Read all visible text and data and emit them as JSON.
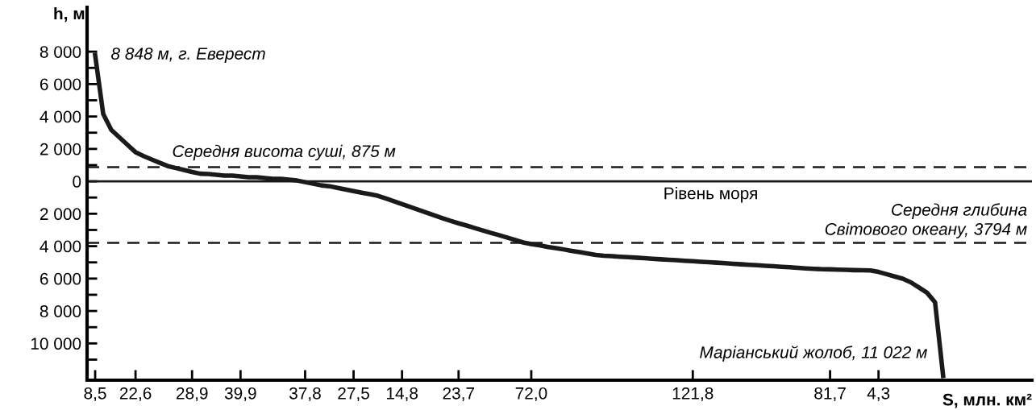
{
  "chart_data": {
    "type": "line",
    "xlabel": "S, млн. км²",
    "ylabel": "h, м",
    "categories": [
      null,
      "8,5",
      null,
      null,
      null,
      null,
      "22,6",
      null,
      null,
      null,
      null,
      null,
      null,
      "28,9",
      null,
      null,
      null,
      null,
      null,
      "39,9",
      null,
      null,
      null,
      null,
      null,
      null,
      null,
      "37,8",
      null,
      null,
      null,
      null,
      null,
      "27,5",
      null,
      null,
      null,
      null,
      null,
      "14,8",
      null,
      null,
      null,
      null,
      null,
      null,
      "23,7",
      null,
      null,
      null,
      null,
      null,
      null,
      null,
      null,
      "72,0",
      null,
      null,
      null,
      null,
      null,
      null,
      null,
      null,
      null,
      null,
      null,
      null,
      null,
      null,
      null,
      null,
      null,
      null,
      null,
      "121,8",
      null,
      null,
      null,
      null,
      null,
      null,
      null,
      null,
      null,
      null,
      null,
      null,
      null,
      null,
      null,
      null,
      "81,7",
      null,
      null,
      null,
      null,
      null,
      "4,3",
      null,
      null,
      null,
      null,
      null,
      null,
      null,
      null,
      null,
      null,
      null,
      null,
      null,
      null,
      null,
      null,
      null,
      null
    ],
    "series": [
      {
        "color": "#1a1a1a",
        "values": [
          null,
          7790,
          4150,
          3170,
          2710,
          2250,
          1800,
          1560,
          1350,
          1140,
          940,
          820,
          700,
          580,
          470,
          450,
          400,
          350,
          350,
          300,
          250,
          250,
          200,
          150,
          150,
          100,
          50,
          -50,
          -150,
          -250,
          -300,
          -400,
          -500,
          -600,
          -700,
          -790,
          -890,
          -1060,
          -1230,
          -1410,
          -1580,
          -1750,
          -1930,
          -2100,
          -2270,
          -2440,
          -2590,
          -2730,
          -2880,
          -3030,
          -3180,
          -3320,
          -3470,
          -3620,
          -3770,
          -3870,
          -3950,
          -4040,
          -4120,
          -4200,
          -4290,
          -4370,
          -4450,
          -4540,
          -4590,
          -4620,
          -4650,
          -4680,
          -4710,
          -4740,
          -4780,
          -4810,
          -4840,
          -4870,
          -4900,
          -4930,
          -4960,
          -4990,
          -5020,
          -5050,
          -5090,
          -5120,
          -5150,
          -5180,
          -5210,
          -5240,
          -5270,
          -5300,
          -5340,
          -5370,
          -5400,
          -5420,
          -5430,
          -5450,
          -5460,
          -5480,
          -5490,
          -5500,
          -5590,
          -5730,
          -5870,
          -6010,
          -6230,
          -6550,
          -6870,
          -7460,
          -12000,
          null,
          null,
          null,
          null,
          null,
          null,
          null,
          null,
          null,
          null
        ]
      }
    ],
    "ylim": [
      -12270,
      10740
    ],
    "yticks": [
      {
        "value": 8000,
        "label": "8 000"
      },
      {
        "value": 7000,
        "label": null
      },
      {
        "value": 6000,
        "label": "6 000"
      },
      {
        "value": 5000,
        "label": null
      },
      {
        "value": 4000,
        "label": "4 000"
      },
      {
        "value": 3000,
        "label": null
      },
      {
        "value": 2000,
        "label": "2 000"
      },
      {
        "value": 1000,
        "label": null
      },
      {
        "value": 0,
        "label": "0"
      },
      {
        "value": -1000,
        "label": null
      },
      {
        "value": -2000,
        "label": "2 000"
      },
      {
        "value": -3000,
        "label": null
      },
      {
        "value": -4000,
        "label": "4 000"
      },
      {
        "value": -5000,
        "label": null
      },
      {
        "value": -6000,
        "label": "6 000"
      },
      {
        "value": -7000,
        "label": null
      },
      {
        "value": -8000,
        "label": "8 000"
      },
      {
        "value": -9000,
        "label": null
      },
      {
        "value": -10000,
        "label": "10 000"
      },
      {
        "value": -11000,
        "label": null
      }
    ],
    "ref_lines": [
      {
        "axis": "y",
        "value": 875,
        "label": "Середня висота суші, 875 м",
        "line_style": "dashed",
        "color": "#1a1a1a"
      },
      {
        "axis": "y",
        "value": 0,
        "label": "Рівень моря",
        "line_style": "solid",
        "color": "#1a1a1a"
      },
      {
        "axis": "y",
        "value": -3794,
        "label": "Середня глибина\nСвітового океану, 3794 м",
        "line_style": "dashed",
        "color": "#1a1a1a"
      }
    ],
    "annotations": [
      {
        "text": "8 848 м, г. Еверест",
        "x": "8,5",
        "y": 7790
      },
      "Маріанський жолоб, 11 022 м"
    ],
    "grid": false,
    "legend": false,
    "marker": "none",
    "line_style": "solid"
  }
}
